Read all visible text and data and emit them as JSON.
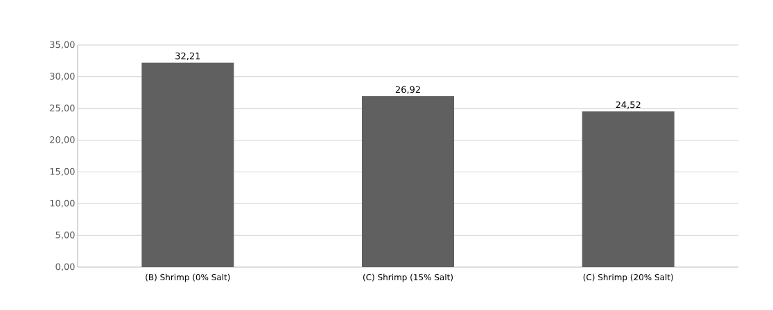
{
  "chart_data": {
    "type": "bar",
    "categories": [
      "(B)   Shrimp (0% Salt)",
      "(C)   Shrimp (15% Salt)",
      "(C) Shrimp (20% Salt)"
    ],
    "values": [
      32.21,
      26.92,
      24.52
    ],
    "value_labels": [
      "32,21",
      "26,92",
      "24,52"
    ],
    "color": "#606060",
    "ylim": [
      0,
      35
    ],
    "yticks": [
      {
        "value": 0,
        "label": "0,00"
      },
      {
        "value": 5,
        "label": "5,00"
      },
      {
        "value": 10,
        "label": "10,00"
      },
      {
        "value": 15,
        "label": "15,00"
      },
      {
        "value": 20,
        "label": "20,00"
      },
      {
        "value": 25,
        "label": "25,00"
      },
      {
        "value": 30,
        "label": "30,00"
      },
      {
        "value": 35,
        "label": "35,00"
      }
    ],
    "grid": "y"
  }
}
